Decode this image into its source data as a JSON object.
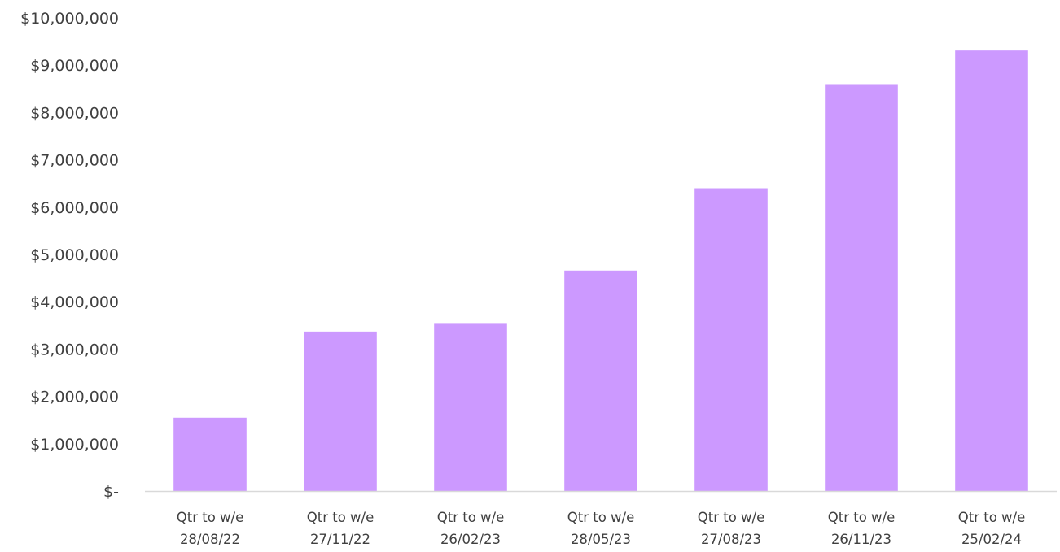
{
  "chart_data": {
    "type": "bar",
    "title": "",
    "xlabel": "",
    "ylabel": "",
    "categories": [
      [
        "Qtr to w/e",
        "28/08/22"
      ],
      [
        "Qtr to w/e",
        "27/11/22"
      ],
      [
        "Qtr to w/e",
        "26/02/23"
      ],
      [
        "Qtr to w/e",
        "28/05/23"
      ],
      [
        "Qtr to w/e",
        "27/08/23"
      ],
      [
        "Qtr to w/e",
        "26/11/23"
      ],
      [
        "Qtr to w/e",
        "25/02/24"
      ]
    ],
    "values": [
      1550000,
      3370000,
      3550000,
      4660000,
      6400000,
      8600000,
      9310000
    ],
    "ylim": [
      0,
      10000000
    ],
    "y_ticks": [
      0,
      1000000,
      2000000,
      3000000,
      4000000,
      5000000,
      6000000,
      7000000,
      8000000,
      9000000,
      10000000
    ],
    "y_tick_labels": [
      "$-",
      "$1,000,000",
      "$2,000,000",
      "$3,000,000",
      "$4,000,000",
      "$5,000,000",
      "$6,000,000",
      "$7,000,000",
      "$8,000,000",
      "$9,000,000",
      "$10,000,000"
    ],
    "grid": false,
    "legend": "none",
    "bar_color": "#cc99ff",
    "axis_color": "#d9d9d9"
  }
}
